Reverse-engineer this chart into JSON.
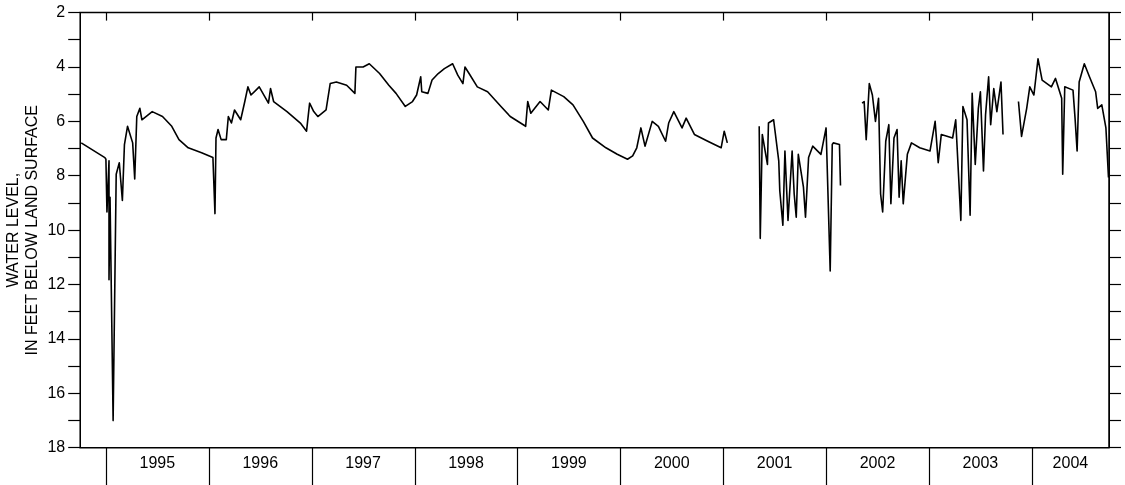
{
  "chart_data": {
    "type": "line",
    "ylabel": "WATER LEVEL,\nIN FEET BELOW LAND SURFACE",
    "xlim": [
      1994.75,
      2004.75
    ],
    "xticks": [
      {
        "value": 1995,
        "label": null
      },
      {
        "value": 1995.5,
        "label": "1995"
      },
      {
        "value": 1996,
        "label": null
      },
      {
        "value": 1996.5,
        "label": "1996"
      },
      {
        "value": 1997,
        "label": null
      },
      {
        "value": 1997.5,
        "label": "1997"
      },
      {
        "value": 1998,
        "label": null
      },
      {
        "value": 1998.5,
        "label": "1998"
      },
      {
        "value": 1999,
        "label": null
      },
      {
        "value": 1999.5,
        "label": "1999"
      },
      {
        "value": 2000,
        "label": null
      },
      {
        "value": 2000.5,
        "label": "2000"
      },
      {
        "value": 2001,
        "label": null
      },
      {
        "value": 2001.5,
        "label": "2001"
      },
      {
        "value": 2002,
        "label": null
      },
      {
        "value": 2002.5,
        "label": "2002"
      },
      {
        "value": 2003,
        "label": null
      },
      {
        "value": 2003.5,
        "label": "2003"
      },
      {
        "value": 2004,
        "label": null
      },
      {
        "value": 2004.375,
        "label": "2004"
      }
    ],
    "ylim": [
      18,
      2
    ],
    "yticks": [
      2,
      {
        "value": 3,
        "label": null
      },
      4,
      {
        "value": 5,
        "label": null
      },
      6,
      {
        "value": 7,
        "label": null
      },
      8,
      {
        "value": 9,
        "label": null
      },
      10,
      {
        "value": 11,
        "label": null
      },
      12,
      {
        "value": 13,
        "label": null
      },
      14,
      {
        "value": 15,
        "label": null
      },
      16,
      {
        "value": 17,
        "label": null
      },
      18
    ],
    "x": [
      1994.76,
      1994.99,
      1995.0,
      1995.01,
      1995.03,
      1995.03,
      1995.04,
      1995.07,
      1995.1,
      1995.13,
      1995.16,
      1995.18,
      1995.21,
      1995.26,
      1995.28,
      1995.3,
      1995.33,
      1995.35,
      1995.45,
      1995.55,
      1995.64,
      1995.71,
      1995.8,
      1995.93,
      1996.04,
      1996.06,
      1996.07,
      1996.09,
      1996.12,
      1996.17,
      1996.19,
      1996.22,
      1996.25,
      1996.31,
      1996.35,
      1996.38,
      1996.41,
      1996.49,
      1996.58,
      1996.6,
      1996.63,
      1996.76,
      1996.89,
      1996.95,
      1996.98,
      1997.02,
      1997.06,
      1997.14,
      1997.18,
      1997.24,
      1997.34,
      1997.42,
      1997.43,
      1997.5,
      1997.56,
      1997.66,
      1997.75,
      1997.82,
      1997.91,
      1997.98,
      1998.02,
      1998.06,
      1998.07,
      1998.13,
      1998.17,
      1998.23,
      1998.29,
      1998.37,
      1998.42,
      1998.47,
      1998.49,
      1998.53,
      1998.61,
      1998.71,
      1998.84,
      1998.93,
      1999.08,
      1999.1,
      1999.13,
      1999.22,
      1999.3,
      1999.33,
      1999.45,
      1999.54,
      1999.64,
      1999.73,
      1999.86,
      1999.97,
      2000.07,
      2000.12,
      2000.16,
      2000.2,
      2000.24,
      2000.31,
      2000.37,
      2000.44,
      2000.47,
      2000.52,
      2000.6,
      2000.64,
      2000.72,
      2000.85,
      2000.98,
      2001.01,
      2001.04,
      2001.2,
      2001.35,
      2001.36,
      2001.38,
      2001.43,
      2001.44,
      2001.49,
      2001.54,
      2001.55,
      2001.58,
      2001.6,
      2001.63,
      2001.67,
      2001.69,
      2001.71,
      2001.73,
      2001.78,
      2001.8,
      2001.83,
      2001.87,
      2001.95,
      2002.0,
      2002.04,
      2002.06,
      2002.07,
      2002.13,
      2002.14,
      2002.25,
      2002.35,
      2002.37,
      2002.39,
      2002.42,
      2002.45,
      2002.48,
      2002.51,
      2002.53,
      2002.55,
      2002.58,
      2002.61,
      2002.63,
      2002.66,
      2002.69,
      2002.71,
      2002.73,
      2002.75,
      2002.79,
      2002.83,
      2002.91,
      2003.01,
      2003.06,
      2003.09,
      2003.12,
      2003.23,
      2003.26,
      2003.31,
      2003.33,
      2003.37,
      2003.4,
      2003.42,
      2003.45,
      2003.48,
      2003.5,
      2003.53,
      2003.55,
      2003.58,
      2003.6,
      2003.63,
      2003.66,
      2003.7,
      2003.72,
      2003.8,
      2003.87,
      2003.9,
      2003.95,
      2003.98,
      2004.02,
      2004.06,
      2004.1,
      2004.19,
      2004.23,
      2004.29,
      2004.3,
      2004.32,
      2004.4,
      2004.42,
      2004.44,
      2004.46,
      2004.51,
      2004.56,
      2004.62,
      2004.64,
      2004.68,
      2004.72,
      2004.745
    ],
    "series": [
      {
        "color": "#000000",
        "values": [
          6.79,
          7.33,
          7.39,
          9.33,
          7.45,
          11.82,
          8.79,
          17.0,
          7.94,
          7.52,
          8.91,
          6.85,
          6.18,
          6.79,
          8.12,
          5.82,
          5.52,
          5.94,
          5.64,
          5.82,
          6.18,
          6.67,
          6.97,
          7.15,
          7.33,
          9.39,
          6.61,
          6.3,
          6.67,
          6.67,
          5.82,
          6.06,
          5.58,
          5.94,
          5.27,
          4.73,
          5.03,
          4.73,
          5.33,
          4.79,
          5.27,
          5.64,
          6.06,
          6.36,
          5.33,
          5.64,
          5.82,
          5.58,
          4.61,
          4.55,
          4.67,
          4.97,
          4.0,
          4.0,
          3.88,
          4.24,
          4.67,
          4.97,
          5.45,
          5.27,
          5.03,
          4.36,
          4.91,
          4.97,
          4.48,
          4.24,
          4.06,
          3.88,
          4.3,
          4.61,
          4.0,
          4.24,
          4.73,
          4.91,
          5.45,
          5.82,
          6.18,
          5.27,
          5.7,
          5.27,
          5.58,
          4.85,
          5.09,
          5.39,
          6.0,
          6.61,
          6.97,
          7.21,
          7.39,
          7.27,
          6.97,
          6.24,
          6.91,
          6.0,
          6.18,
          6.73,
          6.06,
          5.64,
          6.24,
          5.88,
          6.48,
          6.73,
          6.97,
          6.36,
          6.79,
          null,
          6.18,
          10.3,
          6.48,
          7.58,
          6.06,
          5.94,
          7.45,
          8.55,
          9.82,
          7.09,
          9.64,
          7.09,
          8.67,
          9.52,
          7.21,
          8.42,
          9.52,
          7.33,
          6.91,
          7.21,
          6.24,
          11.5,
          6.85,
          6.79,
          6.85,
          8.36,
          null,
          5.33,
          5.27,
          6.67,
          4.61,
          5.03,
          6.0,
          5.15,
          8.67,
          9.33,
          6.73,
          6.12,
          9.03,
          6.61,
          6.3,
          8.79,
          7.45,
          9.03,
          7.21,
          6.79,
          6.97,
          7.09,
          6.0,
          7.52,
          6.48,
          6.61,
          5.94,
          9.64,
          5.45,
          5.94,
          9.45,
          4.97,
          7.58,
          5.52,
          4.91,
          7.82,
          5.76,
          4.36,
          6.12,
          4.79,
          5.64,
          4.55,
          6.48,
          null,
          5.27,
          6.55,
          5.52,
          4.73,
          5.03,
          3.7,
          4.48,
          4.73,
          4.42,
          5.15,
          7.94,
          4.73,
          4.85,
          5.88,
          7.09,
          4.55,
          3.88,
          4.36,
          4.91,
          5.52,
          5.39,
          6.24,
          8.06
        ]
      }
    ]
  }
}
